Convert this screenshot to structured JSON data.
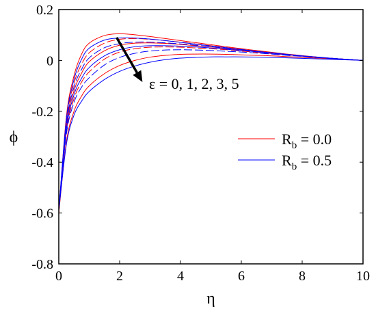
{
  "chart_data": {
    "type": "line",
    "xlabel": "η",
    "ylabel": "ϕ",
    "xlim": [
      0,
      10
    ],
    "ylim": [
      -0.8,
      0.2
    ],
    "x_ticks": [
      0,
      2,
      4,
      6,
      8,
      10
    ],
    "y_ticks": [
      -0.8,
      -0.6,
      -0.4,
      -0.2,
      0,
      0.2
    ],
    "x_tick_labels": [
      "0",
      "2",
      "4",
      "6",
      "8",
      "10"
    ],
    "y_tick_labels": [
      "-0.8",
      "-0.6",
      "-0.4",
      "-0.2",
      "0",
      "0.2"
    ],
    "grid": false,
    "legend_position": "right",
    "legend": [
      {
        "label_main": "R",
        "label_sub": "b",
        "label_rest": " = 0.0",
        "color": "#ff0000"
      },
      {
        "label_main": "R",
        "label_sub": "b",
        "label_rest": " = 0.5",
        "color": "#0000ff"
      }
    ],
    "annotation": {
      "text": "ε = 0, 1, 2, 3, 5",
      "arrow_from": [
        1.9,
        0.09
      ],
      "arrow_to": [
        2.75,
        -0.085
      ]
    },
    "x": [
      0,
      0.25,
      0.5,
      0.75,
      1,
      1.5,
      2,
      2.5,
      3,
      3.5,
      4,
      4.5,
      5,
      5.5,
      6,
      6.5,
      7,
      7.5,
      8,
      8.5,
      9,
      9.5,
      10
    ],
    "series": [
      {
        "group": "Rb=0.0",
        "color": "#ff0000",
        "dashed": false,
        "values": [
          -0.6,
          -0.22,
          -0.06,
          0.025,
          0.068,
          0.098,
          0.105,
          0.101,
          0.094,
          0.086,
          0.078,
          0.07,
          0.062,
          0.054,
          0.046,
          0.039,
          0.032,
          0.025,
          0.019,
          0.013,
          0.008,
          0.004,
          0
        ]
      },
      {
        "group": "Rb=0.0",
        "color": "#ff0000",
        "dashed": true,
        "values": [
          -0.6,
          -0.24,
          -0.09,
          -0.015,
          0.03,
          0.068,
          0.083,
          0.086,
          0.083,
          0.078,
          0.072,
          0.065,
          0.058,
          0.051,
          0.044,
          0.037,
          0.031,
          0.024,
          0.018,
          0.013,
          0.008,
          0.004,
          0
        ]
      },
      {
        "group": "Rb=0.0",
        "color": "#ff0000",
        "dashed": false,
        "values": [
          -0.6,
          -0.26,
          -0.12,
          -0.05,
          -0.005,
          0.038,
          0.06,
          0.068,
          0.069,
          0.067,
          0.063,
          0.058,
          0.053,
          0.047,
          0.041,
          0.035,
          0.029,
          0.023,
          0.018,
          0.012,
          0.008,
          0.004,
          0
        ]
      },
      {
        "group": "Rb=0.0",
        "color": "#ff0000",
        "dashed": true,
        "values": [
          -0.6,
          -0.28,
          -0.15,
          -0.085,
          -0.045,
          0.005,
          0.033,
          0.046,
          0.052,
          0.053,
          0.052,
          0.049,
          0.046,
          0.042,
          0.037,
          0.032,
          0.027,
          0.022,
          0.017,
          0.012,
          0.008,
          0.004,
          0
        ]
      },
      {
        "group": "Rb=0.0",
        "color": "#ff0000",
        "dashed": false,
        "values": [
          -0.6,
          -0.32,
          -0.2,
          -0.14,
          -0.1,
          -0.052,
          -0.02,
          0.0,
          0.013,
          0.02,
          0.024,
          0.025,
          0.025,
          0.024,
          0.022,
          0.02,
          0.018,
          0.015,
          0.012,
          0.009,
          0.006,
          0.003,
          0
        ]
      },
      {
        "group": "Rb=0.5",
        "color": "#0000ff",
        "dashed": false,
        "values": [
          -0.59,
          -0.23,
          -0.075,
          0.005,
          0.048,
          0.08,
          0.088,
          0.088,
          0.084,
          0.078,
          0.071,
          0.064,
          0.057,
          0.05,
          0.043,
          0.036,
          0.03,
          0.024,
          0.018,
          0.013,
          0.008,
          0.004,
          0
        ]
      },
      {
        "group": "Rb=0.5",
        "color": "#0000ff",
        "dashed": true,
        "values": [
          -0.59,
          -0.25,
          -0.105,
          -0.035,
          0.01,
          0.05,
          0.066,
          0.072,
          0.072,
          0.069,
          0.065,
          0.06,
          0.054,
          0.048,
          0.042,
          0.035,
          0.029,
          0.023,
          0.018,
          0.012,
          0.008,
          0.004,
          0
        ]
      },
      {
        "group": "Rb=0.5",
        "color": "#0000ff",
        "dashed": false,
        "values": [
          -0.59,
          -0.27,
          -0.135,
          -0.07,
          -0.028,
          0.018,
          0.042,
          0.054,
          0.058,
          0.058,
          0.056,
          0.053,
          0.049,
          0.044,
          0.039,
          0.034,
          0.028,
          0.023,
          0.017,
          0.012,
          0.008,
          0.004,
          0
        ]
      },
      {
        "group": "Rb=0.5",
        "color": "#0000ff",
        "dashed": true,
        "values": [
          -0.59,
          -0.29,
          -0.165,
          -0.105,
          -0.068,
          -0.018,
          0.012,
          0.028,
          0.037,
          0.041,
          0.042,
          0.041,
          0.039,
          0.036,
          0.033,
          0.029,
          0.025,
          0.02,
          0.016,
          0.011,
          0.007,
          0.004,
          0
        ]
      },
      {
        "group": "Rb=0.5",
        "color": "#0000ff",
        "dashed": false,
        "values": [
          -0.59,
          -0.33,
          -0.215,
          -0.16,
          -0.122,
          -0.075,
          -0.043,
          -0.022,
          -0.007,
          0.003,
          0.009,
          0.012,
          0.014,
          0.014,
          0.014,
          0.013,
          0.012,
          0.01,
          0.008,
          0.006,
          0.004,
          0.002,
          0
        ]
      }
    ]
  }
}
